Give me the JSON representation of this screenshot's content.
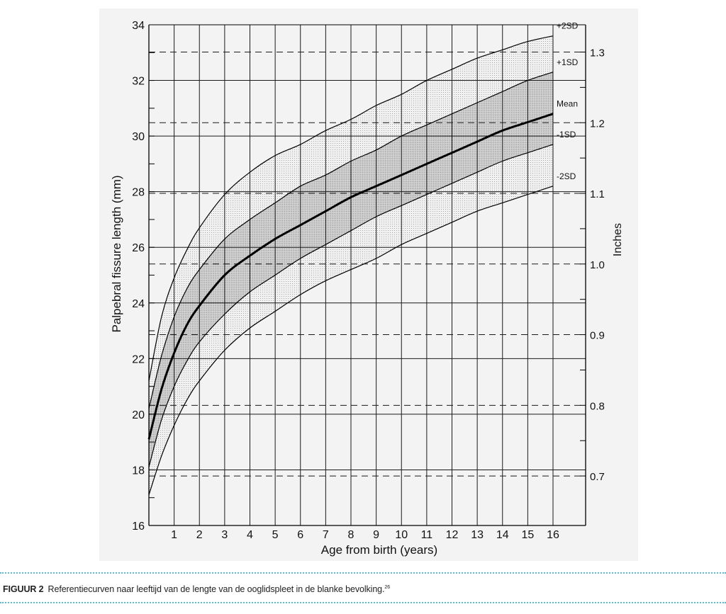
{
  "chart_data": {
    "type": "line",
    "xlabel": "Age from birth (years)",
    "ylabel": "Palpebral fissure length (mm)",
    "y2label": "Inches",
    "xlim": [
      0,
      16
    ],
    "ylim": [
      16,
      34
    ],
    "x_ticks": [
      "1",
      "2",
      "3",
      "4",
      "5",
      "6",
      "7",
      "8",
      "9",
      "10",
      "11",
      "12",
      "13",
      "14",
      "15",
      "16"
    ],
    "y_ticks": [
      "16",
      "18",
      "20",
      "22",
      "24",
      "26",
      "28",
      "30",
      "32",
      "34"
    ],
    "y2_ticks": [
      "0.7",
      "0.8",
      "0.9",
      "1.0",
      "1.1",
      "1.2",
      "1.3"
    ],
    "grid": true,
    "shaded_bands": [
      "±2SD",
      "±1SD"
    ],
    "series": [
      {
        "name": "+2SD",
        "x": [
          0,
          0.5,
          1,
          1.5,
          2,
          3,
          4,
          5,
          6,
          7,
          8,
          9,
          10,
          11,
          12,
          13,
          14,
          15,
          16
        ],
        "y": [
          21.2,
          23.5,
          24.9,
          25.9,
          26.7,
          27.9,
          28.7,
          29.3,
          29.7,
          30.2,
          30.6,
          31.1,
          31.5,
          32.0,
          32.4,
          32.8,
          33.1,
          33.4,
          33.6
        ]
      },
      {
        "name": "+1SD",
        "x": [
          0,
          0.5,
          1,
          1.5,
          2,
          3,
          4,
          5,
          6,
          7,
          8,
          9,
          10,
          11,
          12,
          13,
          14,
          15,
          16
        ],
        "y": [
          20.2,
          22.1,
          23.5,
          24.5,
          25.2,
          26.3,
          27.0,
          27.6,
          28.2,
          28.6,
          29.1,
          29.5,
          30.0,
          30.4,
          30.8,
          31.2,
          31.6,
          32.0,
          32.3
        ]
      },
      {
        "name": "Mean",
        "x": [
          0,
          0.5,
          1,
          1.5,
          2,
          3,
          4,
          5,
          6,
          7,
          8,
          9,
          10,
          11,
          12,
          13,
          14,
          15,
          16
        ],
        "y": [
          19.1,
          20.9,
          22.2,
          23.2,
          23.9,
          25.0,
          25.7,
          26.3,
          26.8,
          27.3,
          27.8,
          28.2,
          28.6,
          29.0,
          29.4,
          29.8,
          30.2,
          30.5,
          30.8
        ]
      },
      {
        "name": "-1SD",
        "x": [
          0,
          0.5,
          1,
          1.5,
          2,
          3,
          4,
          5,
          6,
          7,
          8,
          9,
          10,
          11,
          12,
          13,
          14,
          15,
          16
        ],
        "y": [
          18.1,
          19.8,
          21.0,
          21.9,
          22.6,
          23.6,
          24.4,
          25.0,
          25.6,
          26.1,
          26.6,
          27.1,
          27.5,
          27.9,
          28.3,
          28.7,
          29.1,
          29.4,
          29.7
        ]
      },
      {
        "name": "-2SD",
        "x": [
          0,
          0.5,
          1,
          1.5,
          2,
          3,
          4,
          5,
          6,
          7,
          8,
          9,
          10,
          11,
          12,
          13,
          14,
          15,
          16
        ],
        "y": [
          17.1,
          18.5,
          19.6,
          20.5,
          21.2,
          22.3,
          23.1,
          23.7,
          24.3,
          24.8,
          25.2,
          25.6,
          26.1,
          26.5,
          26.9,
          27.3,
          27.6,
          27.9,
          28.2
        ]
      }
    ]
  },
  "caption": {
    "label": "FIGUUR 2",
    "text": "Referentiecurven naar leeftijd van de lengte van de ooglidspleet in de blanke bevolking.",
    "ref": "26"
  }
}
